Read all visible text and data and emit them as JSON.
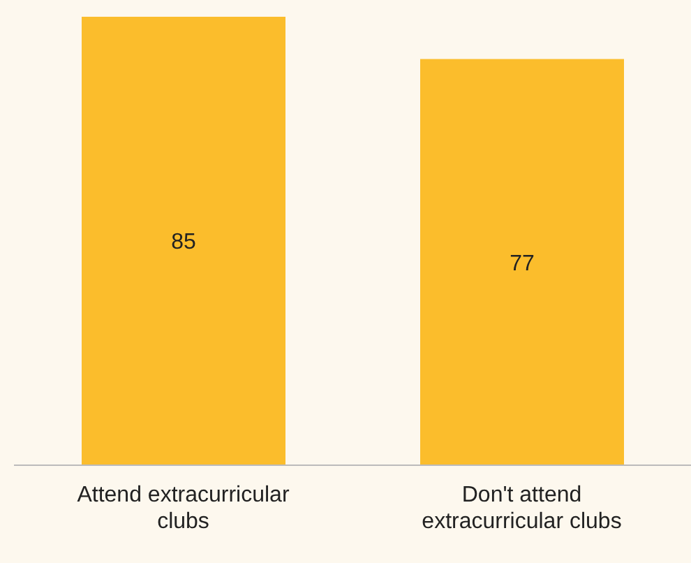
{
  "chart_data": {
    "type": "bar",
    "categories": [
      "Attend extracurricular clubs",
      "Don't attend extracurricular clubs"
    ],
    "values": [
      85,
      77
    ],
    "color": "#fbbd2c",
    "ylim": [
      0,
      85
    ],
    "tick_labels": "x",
    "data_labels": true,
    "grid": false
  }
}
